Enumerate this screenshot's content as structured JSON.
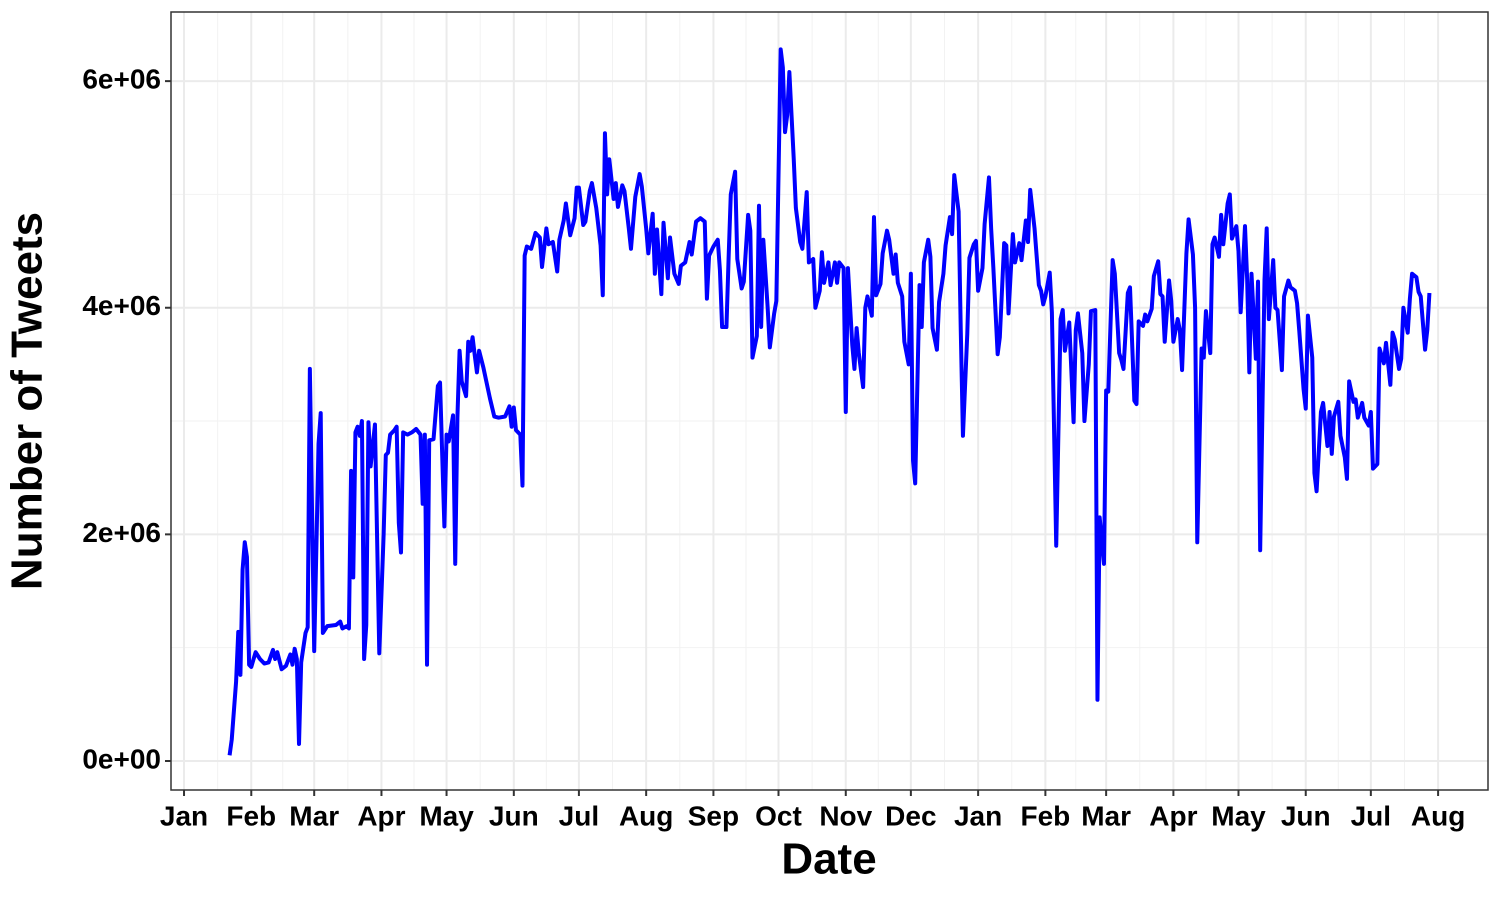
{
  "chart_data": {
    "type": "line",
    "x_label": "Date",
    "y_label": "Number of Tweets",
    "color": "#0000ff",
    "grid": true,
    "xlim": [
      -6,
      601
    ],
    "ylim": [
      -256000,
      6610000
    ],
    "xticks": [
      {
        "value": 0,
        "label": "Jan"
      },
      {
        "value": 31,
        "label": "Feb"
      },
      {
        "value": 60,
        "label": "Mar"
      },
      {
        "value": 91,
        "label": "Apr"
      },
      {
        "value": 121,
        "label": "May"
      },
      {
        "value": 152,
        "label": "Jun"
      },
      {
        "value": 182,
        "label": "Jul"
      },
      {
        "value": 213,
        "label": "Aug"
      },
      {
        "value": 244,
        "label": "Sep"
      },
      {
        "value": 274,
        "label": "Oct"
      },
      {
        "value": 305,
        "label": "Nov"
      },
      {
        "value": 335,
        "label": "Dec"
      },
      {
        "value": 366,
        "label": "Jan"
      },
      {
        "value": 397,
        "label": "Feb"
      },
      {
        "value": 425,
        "label": "Mar"
      },
      {
        "value": 456,
        "label": "Apr"
      },
      {
        "value": 486,
        "label": "May"
      },
      {
        "value": 517,
        "label": "Jun"
      },
      {
        "value": 547,
        "label": "Jul"
      },
      {
        "value": 578,
        "label": "Aug"
      }
    ],
    "yticks": [
      {
        "value": 0,
        "label": "0e+00"
      },
      {
        "value": 2000000,
        "label": "2e+06"
      },
      {
        "value": 4000000,
        "label": "4e+06"
      },
      {
        "value": 6000000,
        "label": "6e+06"
      }
    ],
    "x": [
      21,
      22,
      24,
      25,
      26,
      27,
      28,
      29,
      30,
      31,
      33,
      35,
      37,
      39,
      41,
      42,
      43,
      45,
      47,
      49,
      50,
      51,
      52,
      53,
      54,
      56,
      57,
      58,
      60,
      62,
      63,
      64,
      66,
      70,
      72,
      73,
      75,
      76,
      77,
      78,
      79,
      80,
      81,
      82,
      83,
      84,
      85,
      86,
      88,
      90,
      92,
      93,
      94,
      95,
      97,
      98,
      99,
      100,
      101,
      103,
      105,
      107,
      109,
      110,
      111,
      112,
      113,
      115,
      117,
      118,
      119,
      120,
      121,
      122,
      124,
      125,
      126,
      127,
      128,
      130,
      131,
      132,
      133,
      134,
      135,
      136,
      138,
      141,
      143,
      145,
      148,
      150,
      151,
      152,
      153,
      155,
      156,
      157,
      158,
      160,
      162,
      164,
      165,
      167,
      168,
      170,
      172,
      173,
      175,
      176,
      178,
      180,
      181,
      182,
      184,
      185,
      187,
      188,
      190,
      192,
      193,
      194,
      195,
      196,
      198,
      199,
      200,
      202,
      203,
      205,
      206,
      208,
      210,
      211,
      213,
      214,
      216,
      217,
      218,
      220,
      221,
      223,
      224,
      226,
      228,
      229,
      231,
      233,
      234,
      236,
      238,
      240,
      241,
      242,
      244,
      246,
      247,
      248,
      250,
      251,
      252,
      254,
      255,
      257,
      258,
      260,
      261,
      262,
      264,
      265,
      266,
      267,
      269,
      270,
      272,
      273,
      275,
      276,
      277,
      278,
      279,
      281,
      282,
      284,
      285,
      287,
      288,
      290,
      291,
      293,
      294,
      295,
      297,
      298,
      300,
      301,
      302,
      304,
      305,
      306,
      308,
      309,
      310,
      311,
      313,
      314,
      315,
      317,
      318,
      319,
      321,
      322,
      324,
      325,
      327,
      328,
      329,
      331,
      332,
      334,
      335,
      336,
      337,
      339,
      340,
      341,
      343,
      344,
      345,
      347,
      348,
      350,
      351,
      353,
      354,
      355,
      357,
      358,
      359,
      361,
      362,
      364,
      365,
      366,
      368,
      369,
      371,
      372,
      373,
      375,
      376,
      378,
      379,
      380,
      382,
      383,
      385,
      386,
      388,
      389,
      390,
      392,
      394,
      395,
      396,
      397,
      399,
      400,
      402,
      404,
      405,
      406,
      408,
      410,
      411,
      412,
      414,
      415,
      417,
      418,
      420,
      421,
      422,
      424,
      425,
      426,
      428,
      429,
      431,
      432,
      433,
      435,
      436,
      438,
      439,
      440,
      442,
      443,
      444,
      446,
      447,
      449,
      450,
      451,
      452,
      454,
      455,
      456,
      458,
      459,
      460,
      462,
      463,
      465,
      466,
      467,
      469,
      470,
      471,
      473,
      474,
      475,
      477,
      478,
      479,
      481,
      482,
      483,
      485,
      486,
      487,
      489,
      490,
      491,
      492,
      494,
      495,
      496,
      498,
      499,
      500,
      502,
      503,
      504,
      506,
      507,
      509,
      510,
      512,
      513,
      514,
      516,
      517,
      518,
      520,
      521,
      522,
      524,
      525,
      527,
      528,
      529,
      530,
      532,
      533,
      535,
      536,
      537,
      539,
      540,
      541,
      543,
      544,
      546,
      547,
      548,
      550,
      551,
      553,
      554,
      556,
      557,
      558,
      560,
      561,
      562,
      564,
      565,
      566,
      568,
      569,
      570,
      572,
      573,
      574
    ],
    "values": [
      50000,
      190000,
      700000,
      1140000,
      760000,
      1690000,
      1930000,
      1800000,
      850000,
      830000,
      960000,
      900000,
      860000,
      870000,
      980000,
      900000,
      960000,
      810000,
      840000,
      940000,
      850000,
      990000,
      900000,
      150000,
      870000,
      1130000,
      1180000,
      3460000,
      970000,
      2800000,
      3070000,
      1130000,
      1190000,
      1200000,
      1230000,
      1170000,
      1190000,
      1170000,
      2560000,
      1620000,
      2900000,
      2950000,
      2870000,
      3000000,
      900000,
      1200000,
      2990000,
      2600000,
      2970000,
      950000,
      2000000,
      2700000,
      2720000,
      2880000,
      2920000,
      2950000,
      2100000,
      1840000,
      2900000,
      2880000,
      2900000,
      2930000,
      2880000,
      2270000,
      2880000,
      850000,
      2830000,
      2840000,
      3310000,
      3340000,
      2700000,
      2070000,
      2880000,
      2820000,
      3050000,
      1740000,
      3030000,
      3620000,
      3350000,
      3220000,
      3700000,
      3620000,
      3740000,
      3580000,
      3430000,
      3620000,
      3470000,
      3200000,
      3040000,
      3030000,
      3040000,
      3130000,
      2950000,
      3120000,
      2920000,
      2880000,
      2430000,
      4460000,
      4540000,
      4520000,
      4660000,
      4620000,
      4360000,
      4700000,
      4560000,
      4580000,
      4320000,
      4600000,
      4770000,
      4920000,
      4640000,
      4790000,
      5060000,
      5060000,
      4730000,
      4760000,
      5030000,
      5100000,
      4880000,
      4550000,
      4110000,
      5540000,
      5000000,
      5310000,
      4960000,
      5100000,
      4890000,
      5080000,
      5030000,
      4700000,
      4520000,
      4980000,
      5180000,
      5070000,
      4700000,
      4480000,
      4830000,
      4300000,
      4690000,
      4120000,
      4750000,
      4260000,
      4620000,
      4300000,
      4210000,
      4370000,
      4400000,
      4580000,
      4470000,
      4760000,
      4790000,
      4760000,
      4080000,
      4460000,
      4540000,
      4600000,
      4330000,
      3830000,
      3830000,
      4440000,
      5000000,
      5200000,
      4430000,
      4170000,
      4230000,
      4820000,
      4680000,
      3560000,
      3750000,
      4900000,
      3830000,
      4600000,
      4000000,
      3650000,
      3950000,
      4060000,
      6280000,
      6120000,
      5550000,
      5700000,
      6080000,
      5320000,
      4880000,
      4580000,
      4520000,
      5020000,
      4400000,
      4430000,
      4000000,
      4150000,
      4490000,
      4220000,
      4400000,
      4200000,
      4400000,
      4220000,
      4400000,
      4350000,
      3080000,
      4350000,
      3670000,
      3460000,
      3820000,
      3600000,
      3300000,
      4000000,
      4100000,
      3930000,
      4800000,
      4110000,
      4210000,
      4480000,
      4680000,
      4600000,
      4300000,
      4470000,
      4220000,
      4100000,
      3700000,
      3500000,
      4300000,
      2650000,
      2450000,
      4200000,
      3830000,
      4400000,
      4600000,
      4450000,
      3820000,
      3630000,
      4050000,
      4300000,
      4550000,
      4800000,
      4650000,
      5170000,
      4850000,
      3800000,
      2870000,
      3770000,
      4440000,
      4560000,
      4590000,
      4150000,
      4350000,
      4740000,
      5150000,
      4700000,
      4360000,
      3590000,
      3740000,
      4570000,
      4550000,
      3950000,
      4650000,
      4400000,
      4570000,
      4420000,
      4770000,
      4580000,
      5040000,
      4700000,
      4200000,
      4150000,
      4030000,
      4100000,
      4310000,
      3960000,
      1900000,
      3900000,
      3980000,
      3620000,
      3870000,
      2990000,
      3800000,
      3950000,
      3600000,
      3000000,
      3500000,
      3970000,
      3980000,
      540000,
      2150000,
      1740000,
      3270000,
      3260000,
      4420000,
      4300000,
      3600000,
      3540000,
      3460000,
      4130000,
      4180000,
      3180000,
      3150000,
      3880000,
      3840000,
      3940000,
      3880000,
      3990000,
      4280000,
      4410000,
      4120000,
      4100000,
      3700000,
      4240000,
      4060000,
      3700000,
      3900000,
      3800000,
      3450000,
      4480000,
      4780000,
      4470000,
      4000000,
      1930000,
      3640000,
      3560000,
      3970000,
      3600000,
      4560000,
      4620000,
      4450000,
      4820000,
      4560000,
      4920000,
      5000000,
      4610000,
      4720000,
      4500000,
      3960000,
      4720000,
      4250000,
      3430000,
      4300000,
      3550000,
      4230000,
      1860000,
      4250000,
      4700000,
      3900000,
      4420000,
      4000000,
      3980000,
      3450000,
      4100000,
      4240000,
      4180000,
      4150000,
      4040000,
      3800000,
      3280000,
      3110000,
      3930000,
      3560000,
      2540000,
      2380000,
      3080000,
      3160000,
      2780000,
      3080000,
      2710000,
      3040000,
      3170000,
      2870000,
      2680000,
      2490000,
      3350000,
      3170000,
      3190000,
      3030000,
      3160000,
      3030000,
      2960000,
      3080000,
      2580000,
      2620000,
      3640000,
      3510000,
      3690000,
      3320000,
      3780000,
      3720000,
      3460000,
      3550000,
      4000000,
      3780000,
      4080000,
      4300000,
      4270000,
      4140000,
      4100000,
      3630000,
      3800000,
      4130000
    ]
  }
}
